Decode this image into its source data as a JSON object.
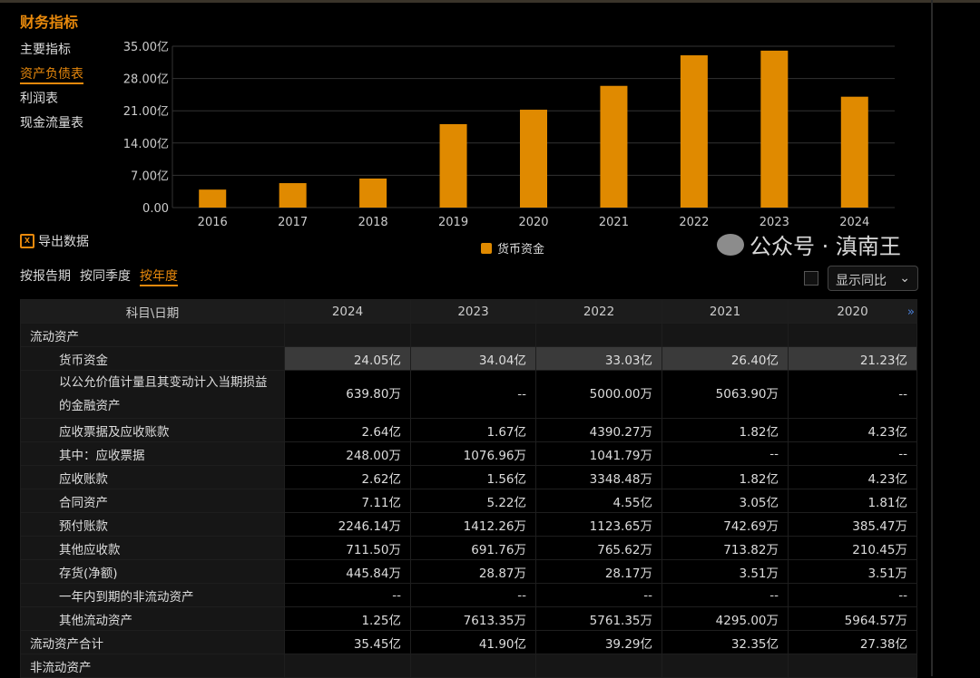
{
  "title": "财务指标",
  "nav": [
    "主要指标",
    "资产负债表",
    "利润表",
    "现金流量表"
  ],
  "nav_active": 1,
  "export_label": "导出数据",
  "periods": [
    "按报告期",
    "按同季度",
    "按年度"
  ],
  "period_active": 2,
  "yoy_label": "显示同比",
  "accent": "#e8890c",
  "chart_data": {
    "type": "bar",
    "categories": [
      "2016",
      "2017",
      "2018",
      "2019",
      "2020",
      "2021",
      "2022",
      "2023",
      "2024"
    ],
    "series": [
      {
        "name": "货币资金",
        "values": [
          3.9,
          5.3,
          6.3,
          18.1,
          21.23,
          26.4,
          33.03,
          34.04,
          24.05
        ]
      }
    ],
    "yticks": [
      "0.00",
      "7.00亿",
      "14.00亿",
      "21.00亿",
      "28.00亿",
      "35.00亿"
    ],
    "ylim": [
      0,
      35
    ],
    "grid": true,
    "legend": "bottom",
    "color": "#e08a00"
  },
  "table": {
    "header": [
      "科目\\日期",
      "2024",
      "2023",
      "2022",
      "2021",
      "2020"
    ],
    "rows": [
      {
        "label": "流动资产",
        "type": "grp",
        "values": [
          "",
          "",
          "",
          "",
          ""
        ]
      },
      {
        "label": "货币资金",
        "type": "hl",
        "values": [
          "24.05亿",
          "34.04亿",
          "33.03亿",
          "26.40亿",
          "21.23亿"
        ]
      },
      {
        "label": "以公允价值计量且其变动计入当期损益的金融资产",
        "type": "tall",
        "values": [
          "639.80万",
          "--",
          "5000.00万",
          "5063.90万",
          "--"
        ]
      },
      {
        "label": "应收票据及应收账款",
        "type": "sub",
        "values": [
          "2.64亿",
          "1.67亿",
          "4390.27万",
          "1.82亿",
          "4.23亿"
        ]
      },
      {
        "label": "其中：应收票据",
        "type": "sub",
        "values": [
          "248.00万",
          "1076.96万",
          "1041.79万",
          "--",
          "--"
        ]
      },
      {
        "label": "应收账款",
        "type": "sub",
        "values": [
          "2.62亿",
          "1.56亿",
          "3348.48万",
          "1.82亿",
          "4.23亿"
        ]
      },
      {
        "label": "合同资产",
        "type": "sub",
        "values": [
          "7.11亿",
          "5.22亿",
          "4.55亿",
          "3.05亿",
          "1.81亿"
        ]
      },
      {
        "label": "预付账款",
        "type": "sub",
        "values": [
          "2246.14万",
          "1412.26万",
          "1123.65万",
          "742.69万",
          "385.47万"
        ]
      },
      {
        "label": "其他应收款",
        "type": "sub",
        "values": [
          "711.50万",
          "691.76万",
          "765.62万",
          "713.82万",
          "210.45万"
        ]
      },
      {
        "label": "存货(净额)",
        "type": "sub",
        "values": [
          "445.84万",
          "28.87万",
          "28.17万",
          "3.51万",
          "3.51万"
        ]
      },
      {
        "label": "一年内到期的非流动资产",
        "type": "sub",
        "values": [
          "--",
          "--",
          "--",
          "--",
          "--"
        ]
      },
      {
        "label": "其他流动资产",
        "type": "sub",
        "values": [
          "1.25亿",
          "7613.35万",
          "5761.35万",
          "4295.00万",
          "5964.57万"
        ]
      },
      {
        "label": "流动资产合计",
        "type": "top",
        "values": [
          "35.45亿",
          "41.90亿",
          "39.29亿",
          "32.35亿",
          "27.38亿"
        ]
      },
      {
        "label": "非流动资产",
        "type": "grp",
        "values": [
          "",
          "",
          "",
          "",
          ""
        ]
      }
    ]
  },
  "watermark": "公众号 · 滇南王"
}
